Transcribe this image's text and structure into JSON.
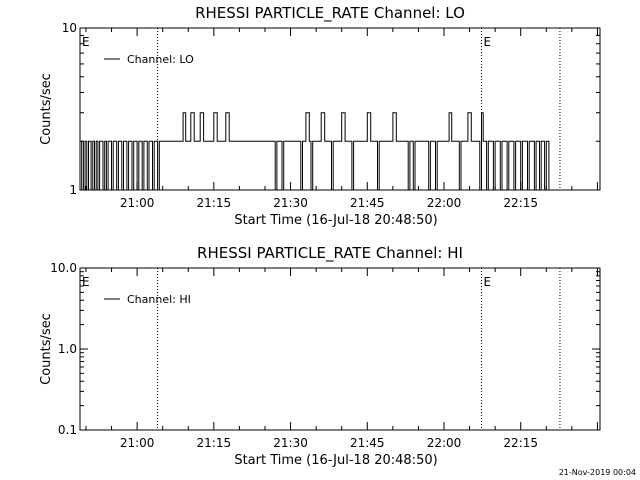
{
  "footer": {
    "timestamp": "21-Nov-2019 00:04"
  },
  "chart_data": [
    {
      "type": "line",
      "title": "RHESSI PARTICLE_RATE Channel: LO",
      "xlabel": "Start Time (16-Jul-18 20:48:50)",
      "ylabel": "Counts/sec",
      "yscale": "log",
      "xlim": [
        "20:48:50",
        "22:30:30"
      ],
      "ylim": [
        1,
        10
      ],
      "x_ticks": [
        "21:00",
        "21:15",
        "21:30",
        "21:45",
        "22:00",
        "22:15"
      ],
      "y_ticks": [
        "1",
        "10"
      ],
      "legend": {
        "placement": "top-left",
        "label": "Channel: LO"
      },
      "event_markers": [
        {
          "time": "20:48:50",
          "label": "E"
        },
        {
          "time": "21:04:00",
          "label": ""
        },
        {
          "time": "22:07:20",
          "label": "E"
        },
        {
          "time": "22:22:40",
          "label": ""
        }
      ],
      "series": [
        {
          "name": "Channel: LO",
          "step_points": [
            [
              "20:48:50",
              1
            ],
            [
              "20:49:10",
              2
            ],
            [
              "20:49:30",
              1
            ],
            [
              "20:49:50",
              2
            ],
            [
              "20:50:10",
              1
            ],
            [
              "20:50:30",
              2
            ],
            [
              "20:51:00",
              1
            ],
            [
              "20:51:20",
              2
            ],
            [
              "20:51:40",
              1
            ],
            [
              "20:52:00",
              2
            ],
            [
              "20:52:20",
              1
            ],
            [
              "20:52:40",
              2
            ],
            [
              "20:53:20",
              1
            ],
            [
              "20:53:40",
              2
            ],
            [
              "20:54:00",
              1
            ],
            [
              "20:54:20",
              2
            ],
            [
              "20:55:00",
              1
            ],
            [
              "20:55:20",
              2
            ],
            [
              "20:56:00",
              1
            ],
            [
              "20:56:20",
              2
            ],
            [
              "20:57:00",
              1
            ],
            [
              "20:57:20",
              2
            ],
            [
              "20:58:00",
              1
            ],
            [
              "20:58:20",
              2
            ],
            [
              "20:59:00",
              1
            ],
            [
              "20:59:20",
              2
            ],
            [
              "21:00:00",
              1
            ],
            [
              "21:00:20",
              2
            ],
            [
              "21:01:00",
              1
            ],
            [
              "21:01:20",
              2
            ],
            [
              "21:02:00",
              1
            ],
            [
              "21:02:20",
              2
            ],
            [
              "21:03:00",
              1
            ],
            [
              "21:03:20",
              2
            ],
            [
              "21:04:00",
              1
            ],
            [
              "21:04:20",
              2
            ],
            [
              "21:09:00",
              3
            ],
            [
              "21:09:30",
              2
            ],
            [
              "21:10:30",
              3
            ],
            [
              "21:11:10",
              2
            ],
            [
              "21:12:20",
              3
            ],
            [
              "21:13:00",
              2
            ],
            [
              "21:15:00",
              3
            ],
            [
              "21:15:40",
              2
            ],
            [
              "21:17:20",
              3
            ],
            [
              "21:18:00",
              2
            ],
            [
              "21:27:00",
              1
            ],
            [
              "21:27:20",
              2
            ],
            [
              "21:28:20",
              1
            ],
            [
              "21:28:40",
              2
            ],
            [
              "21:32:00",
              1
            ],
            [
              "21:32:20",
              2
            ],
            [
              "21:33:00",
              3
            ],
            [
              "21:33:40",
              2
            ],
            [
              "21:34:00",
              1
            ],
            [
              "21:34:20",
              2
            ],
            [
              "21:36:00",
              3
            ],
            [
              "21:36:40",
              2
            ],
            [
              "21:38:00",
              1
            ],
            [
              "21:38:20",
              2
            ],
            [
              "21:40:00",
              3
            ],
            [
              "21:40:40",
              2
            ],
            [
              "21:42:00",
              1
            ],
            [
              "21:42:20",
              2
            ],
            [
              "21:45:00",
              3
            ],
            [
              "21:45:40",
              2
            ],
            [
              "21:47:00",
              1
            ],
            [
              "21:47:20",
              2
            ],
            [
              "21:50:00",
              3
            ],
            [
              "21:50:40",
              2
            ],
            [
              "21:53:00",
              1
            ],
            [
              "21:53:20",
              2
            ],
            [
              "21:54:00",
              1
            ],
            [
              "21:54:20",
              2
            ],
            [
              "21:57:00",
              1
            ],
            [
              "21:57:20",
              2
            ],
            [
              "21:58:20",
              1
            ],
            [
              "21:58:40",
              2
            ],
            [
              "22:01:00",
              3
            ],
            [
              "22:01:30",
              2
            ],
            [
              "22:03:00",
              1
            ],
            [
              "22:03:20",
              2
            ],
            [
              "22:04:40",
              3
            ],
            [
              "22:05:20",
              2
            ],
            [
              "22:07:00",
              1
            ],
            [
              "22:07:20",
              3
            ],
            [
              "22:07:40",
              2
            ],
            [
              "22:08:20",
              1
            ],
            [
              "22:08:40",
              2
            ],
            [
              "22:09:40",
              1
            ],
            [
              "22:10:00",
              2
            ],
            [
              "22:11:00",
              1
            ],
            [
              "22:11:20",
              2
            ],
            [
              "22:12:20",
              1
            ],
            [
              "22:12:40",
              2
            ],
            [
              "22:13:40",
              1
            ],
            [
              "22:14:00",
              2
            ],
            [
              "22:15:00",
              1
            ],
            [
              "22:15:20",
              2
            ],
            [
              "22:16:20",
              1
            ],
            [
              "22:16:40",
              2
            ],
            [
              "22:17:40",
              1
            ],
            [
              "22:18:00",
              2
            ],
            [
              "22:18:40",
              1
            ],
            [
              "22:19:00",
              2
            ],
            [
              "22:19:40",
              1
            ],
            [
              "22:20:00",
              2
            ],
            [
              "22:20:30",
              1
            ]
          ]
        }
      ]
    },
    {
      "type": "line",
      "title": "RHESSI PARTICLE_RATE Channel: HI",
      "xlabel": "Start Time (16-Jul-18 20:48:50)",
      "ylabel": "Counts/sec",
      "yscale": "log",
      "xlim": [
        "20:48:50",
        "22:30:30"
      ],
      "ylim": [
        0.1,
        10
      ],
      "x_ticks": [
        "21:00",
        "21:15",
        "21:30",
        "21:45",
        "22:00",
        "22:15"
      ],
      "y_ticks": [
        "0.1",
        "1.0",
        "10.0"
      ],
      "legend": {
        "placement": "top-left",
        "label": "Channel: HI"
      },
      "event_markers": [
        {
          "time": "20:48:50",
          "label": "E"
        },
        {
          "time": "21:04:00",
          "label": ""
        },
        {
          "time": "22:07:20",
          "label": "E"
        },
        {
          "time": "22:22:40",
          "label": ""
        }
      ],
      "series": [
        {
          "name": "Channel: HI",
          "step_points": []
        }
      ]
    }
  ]
}
